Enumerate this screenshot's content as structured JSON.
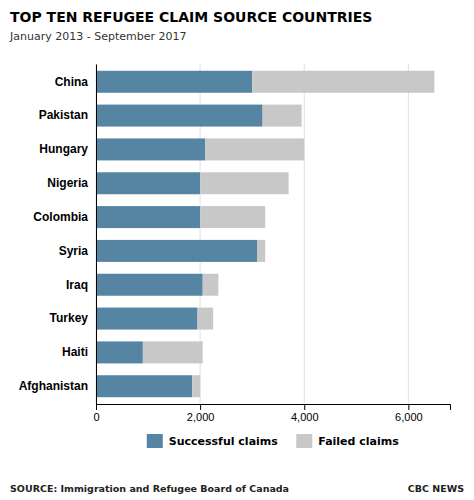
{
  "chart_data": {
    "type": "bar",
    "orientation": "horizontal",
    "stacked": true,
    "title": "TOP TEN REFUGEE CLAIM SOURCE COUNTRIES",
    "subtitle": "January 2013 - September 2017",
    "annotations": [
      "SOURCE: Immigration and Refugee Board of Canada",
      "CBC NEWS"
    ],
    "categories": [
      "China",
      "Pakistan",
      "Hungary",
      "Nigeria",
      "Colombia",
      "Syria",
      "Iraq",
      "Turkey",
      "Haiti",
      "Afghanistan"
    ],
    "series": [
      {
        "name": "Successful claims",
        "color": "#5585a2",
        "values": [
          3000,
          3200,
          2100,
          2000,
          2000,
          3100,
          2050,
          1950,
          900,
          1850
        ]
      },
      {
        "name": "Failed claims",
        "color": "#c8c8c8",
        "values": [
          3500,
          750,
          1900,
          1700,
          1250,
          150,
          300,
          300,
          1150,
          150
        ]
      }
    ],
    "xlim": [
      0,
      6800
    ],
    "xticks": [
      0,
      {
        "value": 2000,
        "label": "2,000"
      },
      {
        "value": 4000,
        "label": "4,000"
      },
      {
        "value": 6000,
        "label": "6,000"
      }
    ],
    "grid": true,
    "legend": "bottom"
  }
}
